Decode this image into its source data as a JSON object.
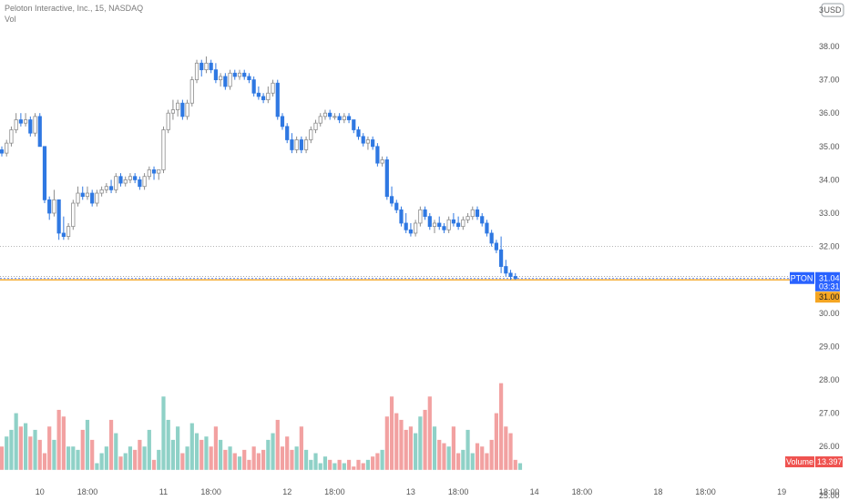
{
  "header": {
    "title": "Peloton Interactive, Inc., 15, NASDAQ",
    "sub": "Vol",
    "currency": "USD"
  },
  "colors": {
    "up": "#b9b9b9",
    "down": "#2f78e2",
    "vol_up": "#8fd1c7",
    "vol_down": "#f2a1a1",
    "accent": "#2962ff",
    "last_price": "#f5a623",
    "vol_tag": "#ef5350"
  },
  "chart_data": {
    "type": "candlestick",
    "y_ticks": [
      "38.00",
      "37.00",
      "36.00",
      "35.00",
      "34.00",
      "33.00",
      "32.00",
      "31.00",
      "30.00",
      "29.00",
      "28.00",
      "27.00",
      "26.00"
    ],
    "y_top_label": "3",
    "y_bottom_label": "25.00",
    "ylim": [
      25.0,
      39.0
    ],
    "x_ticks": [
      {
        "i": 8,
        "label": "10"
      },
      {
        "i": 18,
        "label": "18:00"
      },
      {
        "i": 34,
        "label": "11"
      },
      {
        "i": 44,
        "label": "18:00"
      },
      {
        "i": 60,
        "label": "12"
      },
      {
        "i": 70,
        "label": "18:00"
      },
      {
        "i": 86,
        "label": "13"
      },
      {
        "i": 96,
        "label": "18:00"
      },
      {
        "i": 112,
        "label": "14"
      },
      {
        "i": 122,
        "label": "18:00"
      },
      {
        "i": 138,
        "label": "18"
      },
      {
        "i": 148,
        "label": "18:00"
      },
      {
        "i": 164,
        "label": "19"
      },
      {
        "i": 174,
        "label": "18:00"
      }
    ],
    "candles": [
      [
        34.9,
        35.0,
        34.7,
        34.8
      ],
      [
        34.8,
        35.2,
        34.7,
        35.1
      ],
      [
        35.1,
        35.6,
        35.0,
        35.5
      ],
      [
        35.5,
        36.0,
        35.4,
        35.8
      ],
      [
        35.8,
        36.0,
        35.6,
        35.7
      ],
      [
        35.7,
        36.0,
        35.6,
        35.8
      ],
      [
        35.8,
        35.9,
        35.3,
        35.4
      ],
      [
        35.4,
        36.0,
        35.3,
        35.9
      ],
      [
        35.9,
        36.0,
        35.0,
        35.0
      ],
      [
        35.0,
        35.0,
        33.3,
        33.4
      ],
      [
        33.4,
        33.5,
        32.8,
        33.0
      ],
      [
        33.0,
        33.7,
        32.9,
        33.4
      ],
      [
        33.4,
        33.4,
        32.2,
        32.4
      ],
      [
        32.4,
        32.9,
        32.2,
        32.3
      ],
      [
        32.3,
        32.7,
        32.2,
        32.6
      ],
      [
        32.6,
        33.4,
        32.5,
        33.3
      ],
      [
        33.3,
        33.8,
        33.2,
        33.6
      ],
      [
        33.6,
        33.8,
        33.4,
        33.5
      ],
      [
        33.5,
        33.8,
        33.4,
        33.6
      ],
      [
        33.6,
        33.7,
        33.2,
        33.3
      ],
      [
        33.3,
        33.7,
        33.2,
        33.6
      ],
      [
        33.6,
        33.8,
        33.5,
        33.7
      ],
      [
        33.7,
        33.9,
        33.6,
        33.8
      ],
      [
        33.8,
        34.0,
        33.6,
        33.7
      ],
      [
        33.7,
        34.2,
        33.6,
        34.1
      ],
      [
        34.1,
        34.2,
        33.8,
        33.9
      ],
      [
        33.9,
        34.1,
        33.8,
        34.0
      ],
      [
        34.0,
        34.2,
        33.9,
        34.1
      ],
      [
        34.1,
        34.2,
        33.9,
        34.0
      ],
      [
        34.0,
        34.1,
        33.7,
        33.8
      ],
      [
        33.8,
        34.2,
        33.7,
        34.1
      ],
      [
        34.1,
        34.4,
        34.0,
        34.3
      ],
      [
        34.3,
        34.4,
        34.0,
        34.2
      ],
      [
        34.2,
        34.3,
        34.0,
        34.3
      ],
      [
        34.3,
        35.6,
        34.2,
        35.5
      ],
      [
        35.5,
        36.1,
        35.4,
        36.0
      ],
      [
        36.0,
        36.4,
        35.8,
        36.1
      ],
      [
        36.1,
        36.4,
        35.9,
        36.3
      ],
      [
        36.3,
        36.4,
        35.8,
        35.9
      ],
      [
        35.9,
        36.4,
        35.8,
        36.3
      ],
      [
        36.3,
        37.1,
        36.2,
        37.0
      ],
      [
        37.0,
        37.6,
        36.9,
        37.5
      ],
      [
        37.5,
        37.6,
        37.1,
        37.3
      ],
      [
        37.3,
        37.7,
        37.2,
        37.5
      ],
      [
        37.5,
        37.6,
        37.2,
        37.3
      ],
      [
        37.3,
        37.5,
        36.9,
        37.0
      ],
      [
        37.0,
        37.2,
        36.8,
        37.1
      ],
      [
        37.1,
        37.2,
        36.7,
        36.8
      ],
      [
        36.8,
        37.3,
        36.7,
        37.2
      ],
      [
        37.2,
        37.3,
        37.0,
        37.1
      ],
      [
        37.1,
        37.3,
        37.0,
        37.2
      ],
      [
        37.2,
        37.3,
        37.0,
        37.1
      ],
      [
        37.1,
        37.2,
        36.9,
        37.0
      ],
      [
        37.0,
        37.1,
        36.5,
        36.6
      ],
      [
        36.6,
        36.8,
        36.4,
        36.5
      ],
      [
        36.5,
        36.6,
        36.3,
        36.4
      ],
      [
        36.4,
        36.8,
        36.3,
        36.6
      ],
      [
        36.6,
        37.0,
        36.5,
        36.9
      ],
      [
        36.9,
        37.0,
        35.8,
        35.9
      ],
      [
        35.9,
        36.0,
        35.5,
        35.6
      ],
      [
        35.6,
        35.7,
        35.1,
        35.2
      ],
      [
        35.2,
        35.4,
        34.8,
        34.9
      ],
      [
        34.9,
        35.3,
        34.8,
        35.2
      ],
      [
        35.2,
        35.3,
        34.8,
        34.9
      ],
      [
        34.9,
        35.3,
        34.8,
        35.2
      ],
      [
        35.2,
        35.6,
        35.1,
        35.5
      ],
      [
        35.5,
        35.8,
        35.4,
        35.7
      ],
      [
        35.7,
        36.0,
        35.6,
        35.9
      ],
      [
        35.9,
        36.1,
        35.8,
        36.0
      ],
      [
        36.0,
        36.1,
        35.8,
        35.9
      ],
      [
        35.9,
        36.0,
        35.8,
        35.9
      ],
      [
        35.9,
        36.0,
        35.7,
        35.8
      ],
      [
        35.8,
        36.0,
        35.7,
        35.9
      ],
      [
        35.9,
        36.0,
        35.7,
        35.8
      ],
      [
        35.8,
        35.8,
        35.4,
        35.5
      ],
      [
        35.5,
        35.6,
        35.2,
        35.3
      ],
      [
        35.3,
        35.4,
        35.0,
        35.1
      ],
      [
        35.1,
        35.3,
        34.9,
        35.2
      ],
      [
        35.2,
        35.3,
        34.9,
        35.0
      ],
      [
        35.0,
        35.1,
        34.4,
        34.5
      ],
      [
        34.5,
        34.7,
        34.4,
        34.6
      ],
      [
        34.6,
        34.7,
        33.4,
        33.5
      ],
      [
        33.5,
        33.8,
        33.2,
        33.3
      ],
      [
        33.3,
        33.4,
        33.0,
        33.1
      ],
      [
        33.1,
        33.2,
        32.6,
        32.7
      ],
      [
        32.7,
        33.0,
        32.4,
        32.5
      ],
      [
        32.5,
        32.7,
        32.3,
        32.4
      ],
      [
        32.4,
        32.8,
        32.3,
        32.7
      ],
      [
        32.7,
        33.2,
        32.6,
        33.1
      ],
      [
        33.1,
        33.2,
        32.8,
        32.9
      ],
      [
        32.9,
        33.0,
        32.5,
        32.6
      ],
      [
        32.6,
        32.8,
        32.4,
        32.7
      ],
      [
        32.7,
        32.9,
        32.5,
        32.6
      ],
      [
        32.6,
        32.7,
        32.4,
        32.5
      ],
      [
        32.5,
        32.9,
        32.4,
        32.8
      ],
      [
        32.8,
        33.0,
        32.6,
        32.7
      ],
      [
        32.7,
        32.9,
        32.5,
        32.6
      ],
      [
        32.6,
        32.9,
        32.5,
        32.8
      ],
      [
        32.8,
        33.0,
        32.7,
        32.9
      ],
      [
        32.9,
        33.2,
        32.8,
        33.1
      ],
      [
        33.1,
        33.2,
        32.8,
        32.9
      ],
      [
        32.9,
        33.0,
        32.6,
        32.7
      ],
      [
        32.7,
        32.8,
        32.3,
        32.4
      ],
      [
        32.4,
        32.5,
        32.0,
        32.1
      ],
      [
        32.1,
        32.2,
        31.8,
        31.9
      ],
      [
        31.9,
        32.3,
        31.2,
        31.4
      ],
      [
        31.4,
        31.6,
        31.1,
        31.2
      ],
      [
        31.2,
        31.3,
        31.0,
        31.1
      ],
      [
        31.1,
        31.2,
        31.0,
        31.04
      ]
    ],
    "volumes": [
      [
        0,
        26.0
      ],
      [
        1,
        26.3
      ],
      [
        2,
        26.5
      ],
      [
        3,
        27.0
      ],
      [
        4,
        26.6
      ],
      [
        5,
        26.7
      ],
      [
        6,
        26.3
      ],
      [
        7,
        26.5
      ],
      [
        8,
        26.2
      ],
      [
        9,
        25.8
      ],
      [
        10,
        26.6
      ],
      [
        11,
        26.2
      ],
      [
        12,
        27.1
      ],
      [
        13,
        26.9
      ],
      [
        14,
        26.0
      ],
      [
        15,
        26.0
      ],
      [
        16,
        25.9
      ],
      [
        17,
        26.5
      ],
      [
        18,
        26.8
      ],
      [
        19,
        26.2
      ],
      [
        20,
        25.5
      ],
      [
        21,
        25.8
      ],
      [
        22,
        26.0
      ],
      [
        23,
        26.8
      ],
      [
        24,
        26.4
      ],
      [
        25,
        25.7
      ],
      [
        26,
        25.8
      ],
      [
        27,
        26.0
      ],
      [
        28,
        25.9
      ],
      [
        29,
        26.2
      ],
      [
        30,
        26.0
      ],
      [
        31,
        26.5
      ],
      [
        32,
        25.6
      ],
      [
        33,
        25.9
      ],
      [
        34,
        27.5
      ],
      [
        35,
        26.8
      ],
      [
        36,
        26.2
      ],
      [
        37,
        26.6
      ],
      [
        38,
        25.8
      ],
      [
        39,
        26.0
      ],
      [
        40,
        26.7
      ],
      [
        41,
        26.4
      ],
      [
        42,
        26.2
      ],
      [
        43,
        26.3
      ],
      [
        44,
        26.0
      ],
      [
        45,
        26.6
      ],
      [
        46,
        26.2
      ],
      [
        47,
        25.9
      ],
      [
        48,
        26.0
      ],
      [
        49,
        25.8
      ],
      [
        50,
        25.7
      ],
      [
        51,
        25.9
      ],
      [
        52,
        25.6
      ],
      [
        53,
        26.0
      ],
      [
        54,
        25.8
      ],
      [
        55,
        25.9
      ],
      [
        56,
        26.2
      ],
      [
        57,
        26.4
      ],
      [
        58,
        26.8
      ],
      [
        59,
        26.0
      ],
      [
        60,
        26.3
      ],
      [
        61,
        25.9
      ],
      [
        62,
        26.0
      ],
      [
        63,
        26.6
      ],
      [
        64,
        25.9
      ],
      [
        65,
        25.6
      ],
      [
        66,
        25.8
      ],
      [
        67,
        25.5
      ],
      [
        68,
        25.7
      ],
      [
        69,
        25.6
      ],
      [
        70,
        25.5
      ],
      [
        71,
        25.6
      ],
      [
        72,
        25.5
      ],
      [
        73,
        25.6
      ],
      [
        74,
        25.4
      ],
      [
        75,
        25.6
      ],
      [
        76,
        25.5
      ],
      [
        77,
        25.6
      ],
      [
        78,
        25.7
      ],
      [
        79,
        25.8
      ],
      [
        80,
        25.9
      ],
      [
        81,
        26.9
      ],
      [
        82,
        27.5
      ],
      [
        83,
        27.0
      ],
      [
        84,
        26.8
      ],
      [
        85,
        26.5
      ],
      [
        86,
        26.6
      ],
      [
        87,
        26.4
      ],
      [
        88,
        26.9
      ],
      [
        89,
        27.1
      ],
      [
        90,
        27.5
      ],
      [
        91,
        26.6
      ],
      [
        92,
        26.2
      ],
      [
        93,
        26.1
      ],
      [
        94,
        26.0
      ],
      [
        95,
        26.6
      ],
      [
        96,
        25.8
      ],
      [
        97,
        25.9
      ],
      [
        98,
        26.5
      ],
      [
        99,
        25.8
      ],
      [
        100,
        26.1
      ],
      [
        101,
        26.0
      ],
      [
        102,
        25.8
      ],
      [
        103,
        26.2
      ],
      [
        104,
        27.0
      ],
      [
        105,
        27.9
      ],
      [
        106,
        26.6
      ],
      [
        107,
        26.4
      ],
      [
        108,
        25.6
      ],
      [
        109,
        25.5
      ]
    ],
    "last_price": 31.04,
    "last_price_line": 31.0,
    "ref_line_1": 32.0,
    "ref_line_2": 31.1,
    "price_tag": {
      "symbol": "PTON",
      "value": "31.04",
      "countdown": "03:31",
      "line_value": "31.00"
    },
    "volume_tag": {
      "name": "Volume",
      "value": "13.397K"
    }
  }
}
